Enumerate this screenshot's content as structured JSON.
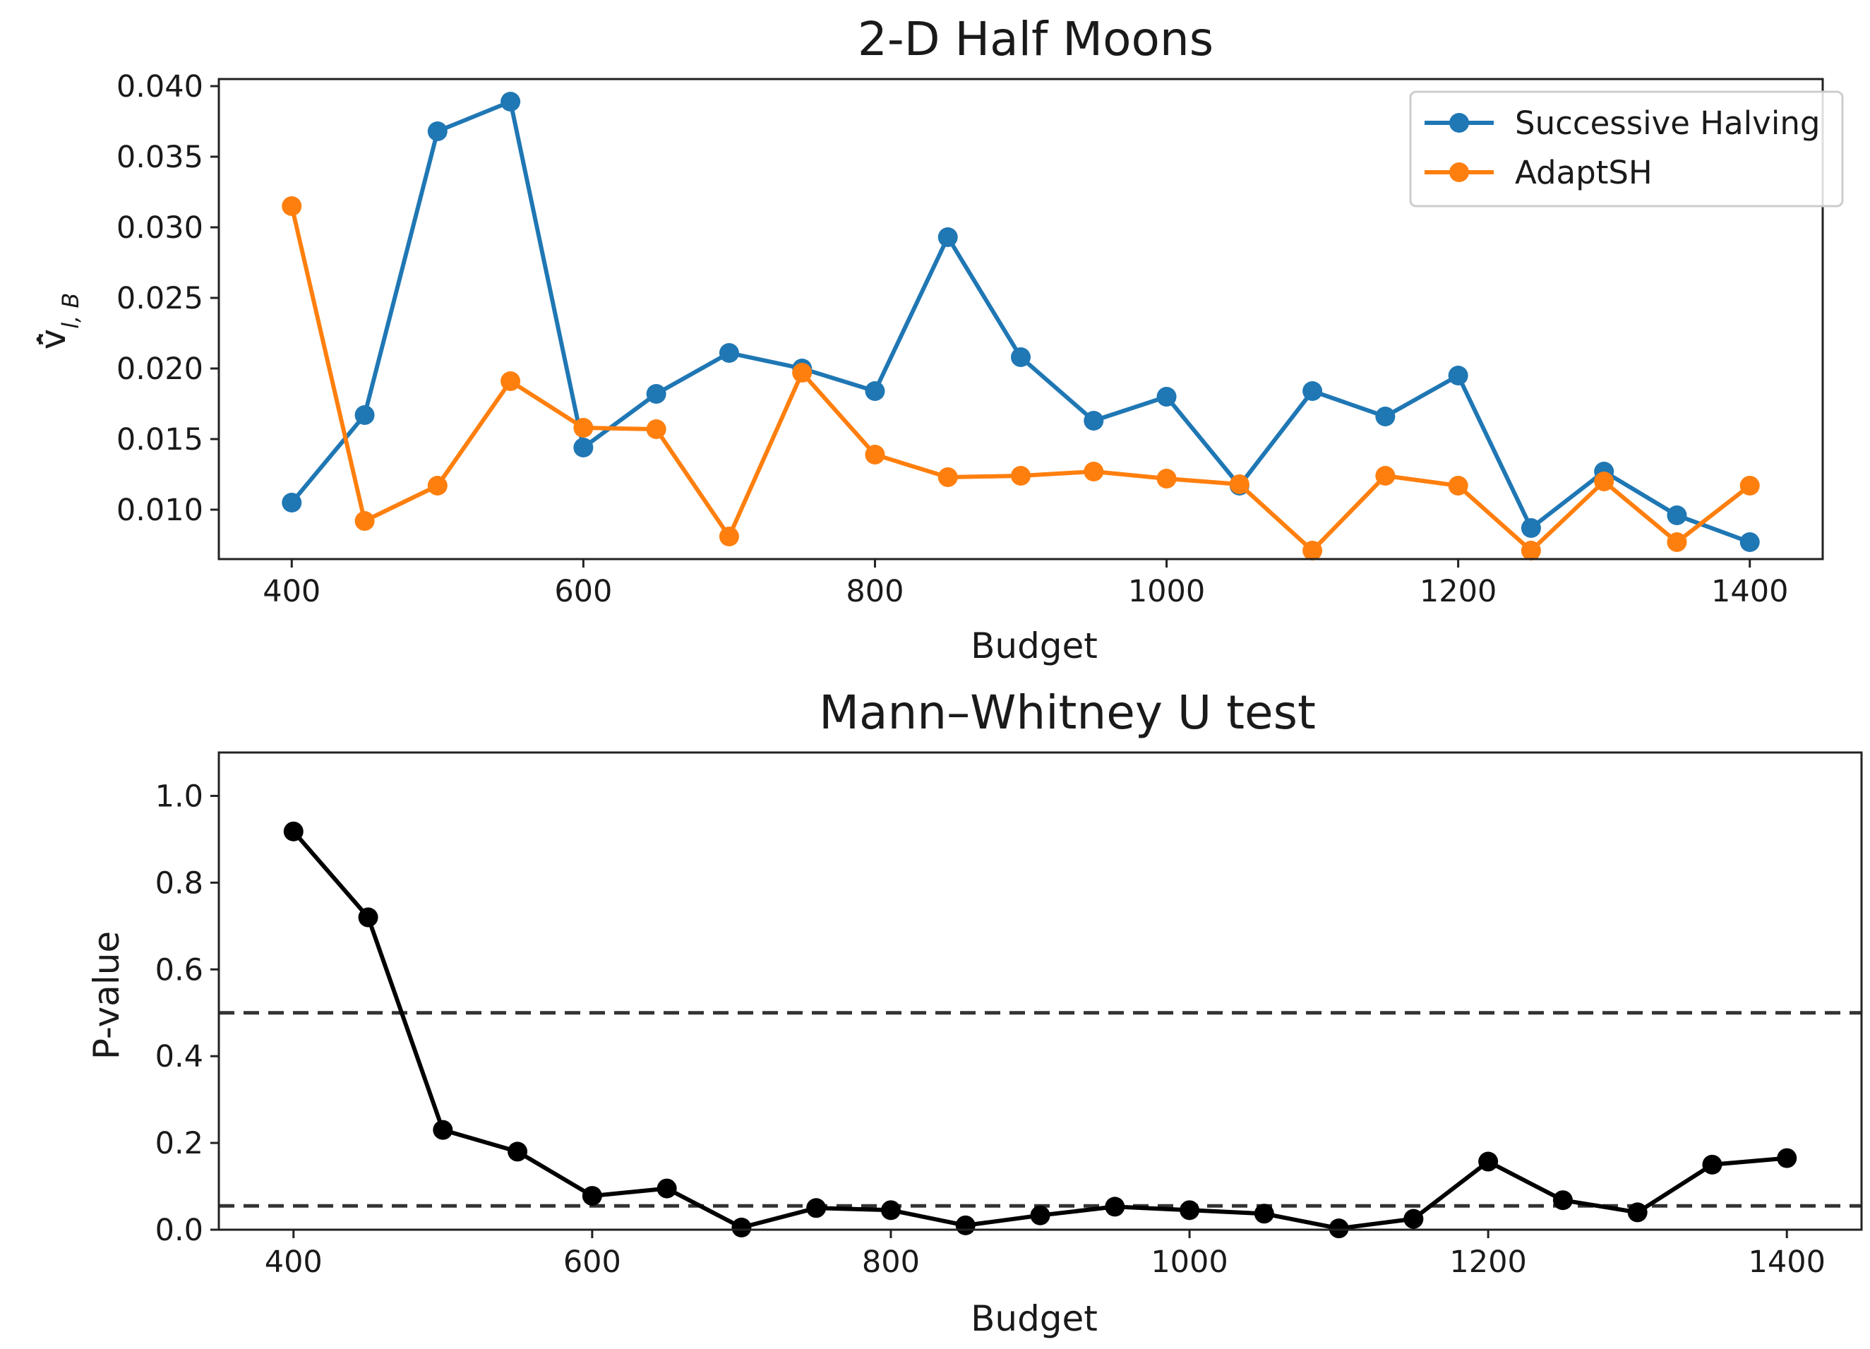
{
  "chart_data": [
    {
      "type": "line",
      "title": "2-D Half Moons",
      "xlabel": "Budget",
      "ylabel": "v̄̂",
      "ylabel_subscript": "l, B",
      "x": [
        400,
        450,
        500,
        550,
        600,
        650,
        700,
        750,
        800,
        850,
        900,
        950,
        1000,
        1050,
        1100,
        1150,
        1200,
        1250,
        1300,
        1350,
        1400
      ],
      "xlim": [
        350,
        1450
      ],
      "ylim": [
        0.0065,
        0.0405
      ],
      "xticks": [
        "400",
        "600",
        "800",
        "1000",
        "1200",
        "1400"
      ],
      "yticks": [
        "0.010",
        "0.015",
        "0.020",
        "0.025",
        "0.030",
        "0.035",
        "0.040"
      ],
      "grid": false,
      "legend_position": "top-right",
      "series": [
        {
          "name": "Successive Halving",
          "color": "#1f77b4",
          "marker": "circle",
          "values": [
            0.0105,
            0.0167,
            0.0368,
            0.0389,
            0.0144,
            0.0182,
            0.0211,
            0.02,
            0.0184,
            0.0293,
            0.0208,
            0.0163,
            0.018,
            0.0117,
            0.0184,
            0.0166,
            0.0195,
            0.0087,
            0.0127,
            0.0096,
            0.0077
          ]
        },
        {
          "name": "AdaptSH",
          "color": "#ff7f0e",
          "marker": "circle",
          "values": [
            0.0315,
            0.0092,
            0.0117,
            0.0191,
            0.0158,
            0.0157,
            0.0081,
            0.0197,
            0.0139,
            0.0123,
            0.0124,
            0.0127,
            0.0122,
            0.0118,
            0.0071,
            0.0124,
            0.0117,
            0.0071,
            0.012,
            0.0077,
            0.0117
          ]
        }
      ]
    },
    {
      "type": "line",
      "title": "Mann–Whitney U test",
      "xlabel": "Budget",
      "ylabel": "P-value",
      "x": [
        400,
        450,
        500,
        550,
        600,
        650,
        700,
        750,
        800,
        850,
        900,
        950,
        1000,
        1050,
        1100,
        1150,
        1200,
        1250,
        1300,
        1350,
        1400
      ],
      "xlim": [
        350,
        1450
      ],
      "ylim": [
        0.0,
        1.1
      ],
      "xticks": [
        "400",
        "600",
        "800",
        "1000",
        "1200",
        "1400"
      ],
      "yticks": [
        "0.0",
        "0.2",
        "0.4",
        "0.6",
        "0.8",
        "1.0"
      ],
      "grid": false,
      "reference_lines": [
        {
          "y": 0.5,
          "style": "dashed",
          "color": "#333333"
        },
        {
          "y": 0.055,
          "style": "dashed",
          "color": "#333333"
        }
      ],
      "series": [
        {
          "color": "#000000",
          "marker": "circle",
          "values": [
            0.918,
            0.72,
            0.23,
            0.18,
            0.078,
            0.095,
            0.005,
            0.05,
            0.045,
            0.01,
            0.033,
            0.053,
            0.045,
            0.037,
            0.003,
            0.025,
            0.157,
            0.068,
            0.04,
            0.15,
            0.165
          ]
        }
      ]
    }
  ]
}
